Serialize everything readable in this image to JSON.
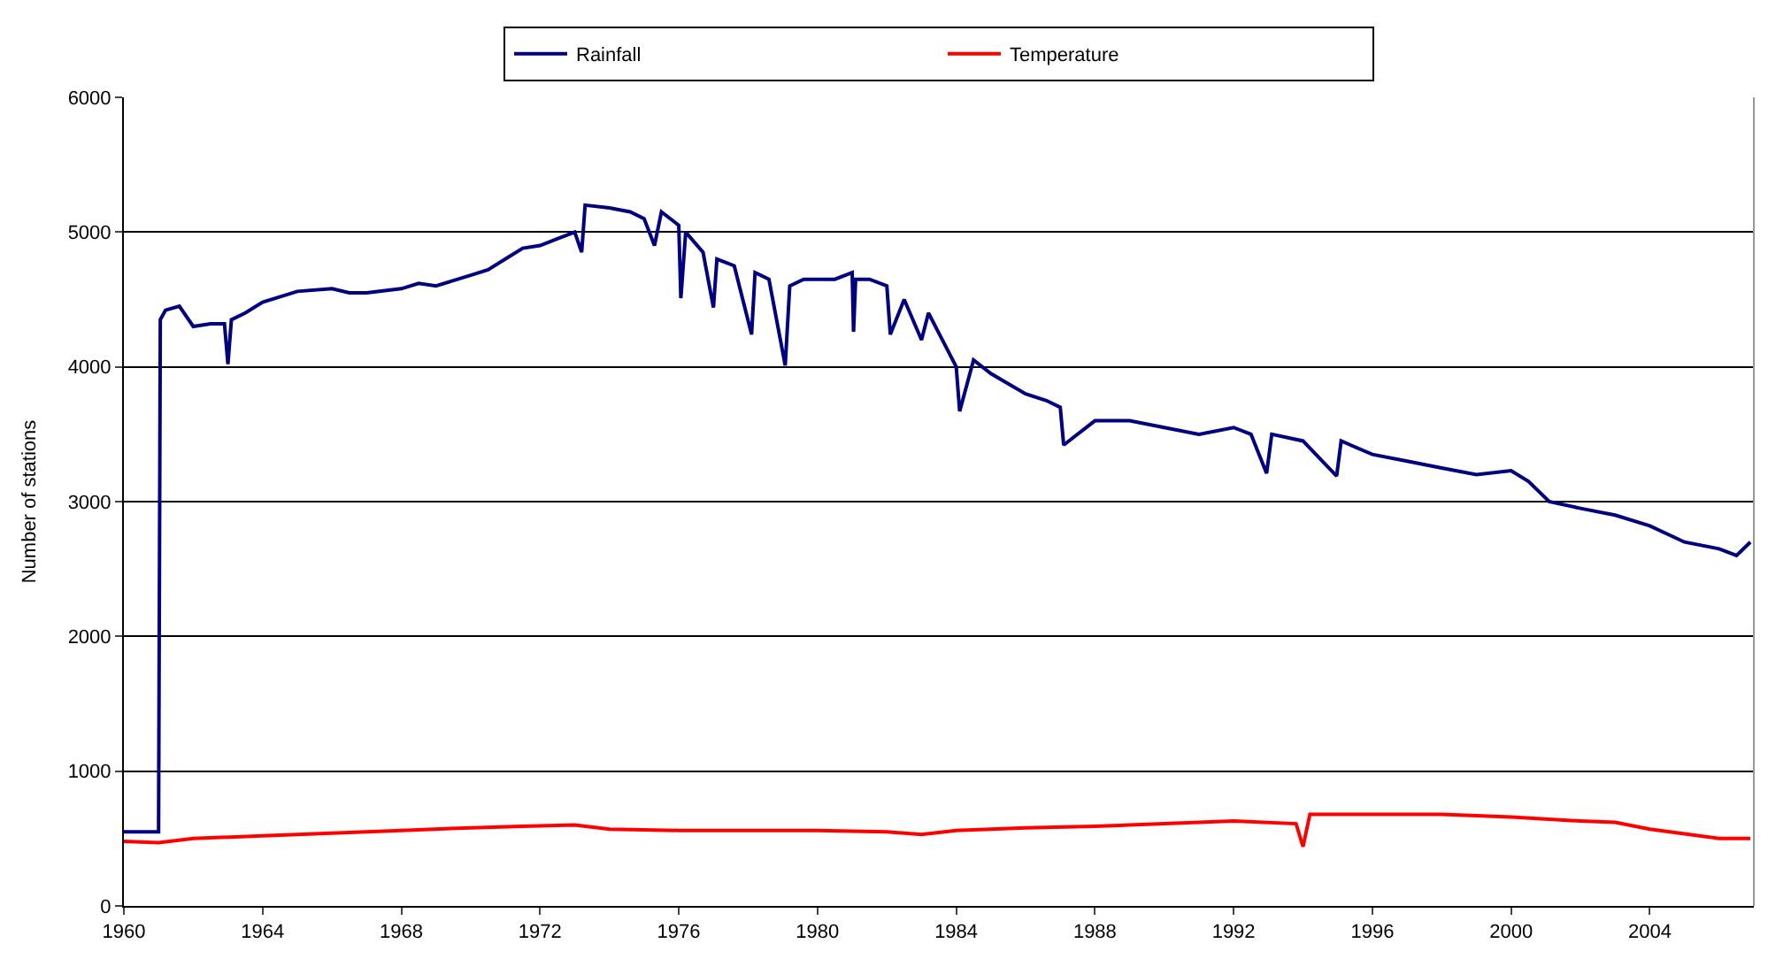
{
  "chart_data": {
    "type": "line",
    "ylabel": "Number of stations",
    "xlim": [
      1960,
      2007
    ],
    "xticks": [
      1960,
      1964,
      1968,
      1972,
      1976,
      1980,
      1984,
      1988,
      1992,
      1996,
      2000,
      2004
    ],
    "ylim": [
      0,
      6000
    ],
    "yticks": [
      0,
      1000,
      2000,
      3000,
      4000,
      5000,
      6000
    ],
    "grid": "y",
    "legend": "top",
    "marker": "none",
    "line_style": "solid",
    "series": [
      {
        "name": "Rainfall",
        "color": "#000080",
        "x": [
          1960,
          1961.0,
          1961.05,
          1961.2,
          1961.6,
          1962.0,
          1962.5,
          1962.9,
          1963.0,
          1963.1,
          1963.5,
          1964,
          1965,
          1966,
          1966.5,
          1967,
          1968,
          1968.5,
          1969,
          1969.5,
          1970,
          1970.5,
          1971,
          1971.5,
          1972,
          1972.5,
          1973,
          1973.2,
          1973.3,
          1974,
          1974.6,
          1975,
          1975.3,
          1975.5,
          1976,
          1976.06,
          1976.2,
          1976.7,
          1977.0,
          1977.1,
          1977.6,
          1978.1,
          1978.2,
          1978.6,
          1979.07,
          1979.2,
          1979.6,
          1980,
          1980.5,
          1981.0,
          1981.04,
          1981.1,
          1981.5,
          1982.0,
          1982.1,
          1982.5,
          1983.0,
          1983.2,
          1983.6,
          1984.0,
          1984.1,
          1984.5,
          1985,
          1986,
          1986.6,
          1987.0,
          1987.1,
          1988,
          1989,
          1990,
          1991,
          1992,
          1992.5,
          1992.95,
          1993.1,
          1994,
          1994.97,
          1995.1,
          1996,
          1997,
          1998,
          1999,
          2000,
          2000.5,
          2001.1,
          2002,
          2003,
          2004,
          2005,
          2006,
          2006.5,
          2006.9
        ],
        "values": [
          550,
          550,
          4350,
          4420,
          4450,
          4300,
          4320,
          4320,
          4020,
          4350,
          4400,
          4480,
          4560,
          4580,
          4550,
          4550,
          4580,
          4620,
          4600,
          4640,
          4680,
          4720,
          4800,
          4880,
          4900,
          4950,
          5000,
          4850,
          5200,
          5180,
          5150,
          5100,
          4900,
          5150,
          5050,
          4510,
          5000,
          4850,
          4440,
          4800,
          4750,
          4240,
          4700,
          4650,
          4010,
          4600,
          4650,
          4650,
          4650,
          4700,
          4260,
          4650,
          4650,
          4600,
          4240,
          4500,
          4200,
          4400,
          4200,
          4000,
          3670,
          4050,
          3950,
          3800,
          3750,
          3700,
          3420,
          3600,
          3600,
          3550,
          3500,
          3550,
          3500,
          3210,
          3500,
          3450,
          3190,
          3450,
          3350,
          3300,
          3250,
          3200,
          3230,
          3150,
          3000,
          2950,
          2900,
          2820,
          2700,
          2650,
          2600,
          2700
        ]
      },
      {
        "name": "Temperature",
        "color": "#ff0000",
        "x": [
          1960,
          1961,
          1962,
          1964,
          1966,
          1968,
          1970,
          1971.5,
          1973,
          1974,
          1976,
          1978,
          1980,
          1982,
          1983,
          1984,
          1986,
          1988,
          1990,
          1992,
          1993.8,
          1994.0,
          1994.2,
          1996,
          1998,
          2000,
          2002,
          2003,
          2004,
          2006,
          2006.9
        ],
        "values": [
          480,
          470,
          500,
          520,
          540,
          560,
          580,
          590,
          600,
          570,
          560,
          560,
          560,
          550,
          530,
          560,
          580,
          590,
          610,
          630,
          610,
          440,
          680,
          680,
          680,
          660,
          630,
          620,
          570,
          500,
          500
        ]
      }
    ]
  }
}
